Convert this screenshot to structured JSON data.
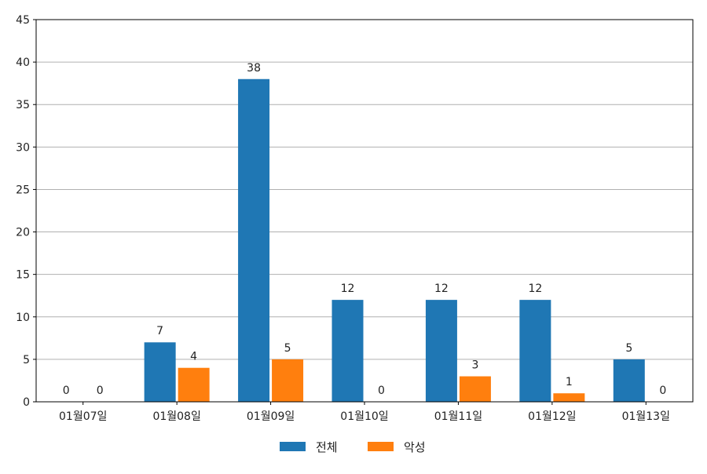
{
  "chart_data": {
    "type": "bar",
    "categories": [
      "01월07일",
      "01월08일",
      "01월09일",
      "01월10일",
      "01월11일",
      "01월12일",
      "01월13일"
    ],
    "series": [
      {
        "name": "전체",
        "values": [
          0,
          7,
          38,
          12,
          12,
          12,
          5
        ],
        "color": "#1f77b4"
      },
      {
        "name": "악성",
        "values": [
          0,
          4,
          5,
          0,
          3,
          1,
          0
        ],
        "color": "#ff7f0e"
      }
    ],
    "ylim": [
      0,
      45
    ],
    "yticks": [
      0,
      5,
      10,
      15,
      20,
      25,
      30,
      35,
      40,
      45
    ],
    "grid": true,
    "legend_position": "bottom-center",
    "show_value_labels": true
  }
}
